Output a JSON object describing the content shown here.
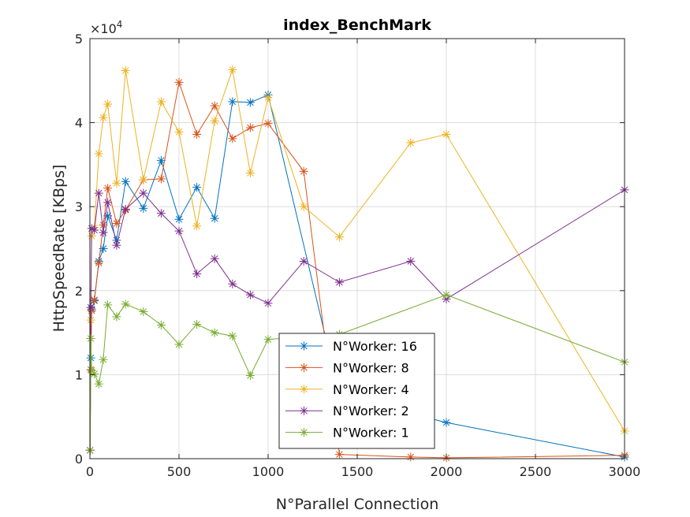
{
  "chart_data": {
    "type": "line",
    "title": "index_BenchMark",
    "xlabel": "N°Parallel Connection",
    "ylabel": "HttpSpeedRate [KBps]",
    "ylim": [
      0,
      50000
    ],
    "xlim": [
      0,
      3000
    ],
    "y_exponent_label": "×10",
    "y_exponent_power": "4",
    "xticks": [
      0,
      500,
      1000,
      1500,
      2000,
      2500,
      3000
    ],
    "xtick_labels": [
      "0",
      "500",
      "1000",
      "1500",
      "2000",
      "2500",
      "3000"
    ],
    "yticks": [
      0,
      10000,
      20000,
      30000,
      40000,
      50000
    ],
    "ytick_labels": [
      "0",
      "1",
      "2",
      "3",
      "4",
      "5"
    ],
    "grid": true,
    "marker": "asterisk",
    "legend_position": "lower-center",
    "series": [
      {
        "name": "N°Worker: 16",
        "color": "#0072BD",
        "points": [
          [
            1,
            1000
          ],
          [
            5,
            12000
          ],
          [
            10,
            17800
          ],
          [
            25,
            18800
          ],
          [
            50,
            23500
          ],
          [
            75,
            25000
          ],
          [
            100,
            28900
          ],
          [
            150,
            26000
          ],
          [
            200,
            33000
          ],
          [
            300,
            29800
          ],
          [
            400,
            35500
          ],
          [
            500,
            28500
          ],
          [
            600,
            32300
          ],
          [
            700,
            28600
          ],
          [
            800,
            42500
          ],
          [
            900,
            42400
          ],
          [
            1000,
            43300
          ],
          [
            1400,
            7500
          ],
          [
            2000,
            4300
          ],
          [
            3000,
            200
          ]
        ]
      },
      {
        "name": "N°Worker: 8",
        "color": "#D95319",
        "points": [
          [
            1,
            1000
          ],
          [
            5,
            10600
          ],
          [
            10,
            17600
          ],
          [
            25,
            18900
          ],
          [
            50,
            23300
          ],
          [
            75,
            27800
          ],
          [
            100,
            32200
          ],
          [
            150,
            28000
          ],
          [
            200,
            29600
          ],
          [
            300,
            33200
          ],
          [
            400,
            33300
          ],
          [
            500,
            44800
          ],
          [
            600,
            38600
          ],
          [
            700,
            42000
          ],
          [
            800,
            38100
          ],
          [
            900,
            39400
          ],
          [
            1000,
            39900
          ],
          [
            1200,
            34200
          ],
          [
            1400,
            500
          ],
          [
            1800,
            200
          ],
          [
            2000,
            100
          ],
          [
            3000,
            400
          ]
        ]
      },
      {
        "name": "N°Worker: 4",
        "color": "#EDB120",
        "points": [
          [
            1,
            1000
          ],
          [
            5,
            16500
          ],
          [
            10,
            26500
          ],
          [
            25,
            27500
          ],
          [
            50,
            36300
          ],
          [
            75,
            40600
          ],
          [
            100,
            42200
          ],
          [
            150,
            32800
          ],
          [
            200,
            46200
          ],
          [
            300,
            33200
          ],
          [
            400,
            42500
          ],
          [
            500,
            38900
          ],
          [
            600,
            27700
          ],
          [
            700,
            40200
          ],
          [
            800,
            46300
          ],
          [
            900,
            34000
          ],
          [
            1000,
            43000
          ],
          [
            1200,
            30000
          ],
          [
            1400,
            26400
          ],
          [
            1800,
            37600
          ],
          [
            2000,
            38600
          ],
          [
            3000,
            3300
          ]
        ]
      },
      {
        "name": "N°Worker: 2",
        "color": "#7E2F8E",
        "points": [
          [
            1,
            1000
          ],
          [
            5,
            18000
          ],
          [
            10,
            27400
          ],
          [
            25,
            27200
          ],
          [
            50,
            31600
          ],
          [
            75,
            26900
          ],
          [
            100,
            30500
          ],
          [
            150,
            25400
          ],
          [
            200,
            29700
          ],
          [
            300,
            31600
          ],
          [
            400,
            29200
          ],
          [
            500,
            27100
          ],
          [
            600,
            22000
          ],
          [
            700,
            23800
          ],
          [
            800,
            20800
          ],
          [
            900,
            19500
          ],
          [
            1000,
            18500
          ],
          [
            1200,
            23500
          ],
          [
            1400,
            21000
          ],
          [
            1800,
            23500
          ],
          [
            2000,
            19000
          ],
          [
            3000,
            32000
          ]
        ]
      },
      {
        "name": "N°Worker: 1",
        "color": "#77AC30",
        "points": [
          [
            1,
            1000
          ],
          [
            5,
            14300
          ],
          [
            10,
            10500
          ],
          [
            25,
            10100
          ],
          [
            50,
            8900
          ],
          [
            75,
            11800
          ],
          [
            100,
            18300
          ],
          [
            150,
            16900
          ],
          [
            200,
            18400
          ],
          [
            300,
            17500
          ],
          [
            400,
            15900
          ],
          [
            500,
            13600
          ],
          [
            600,
            16000
          ],
          [
            700,
            15000
          ],
          [
            800,
            14600
          ],
          [
            900,
            9900
          ],
          [
            1000,
            14200
          ],
          [
            1400,
            14800
          ],
          [
            2000,
            19500
          ],
          [
            3000,
            11500
          ]
        ]
      }
    ]
  }
}
